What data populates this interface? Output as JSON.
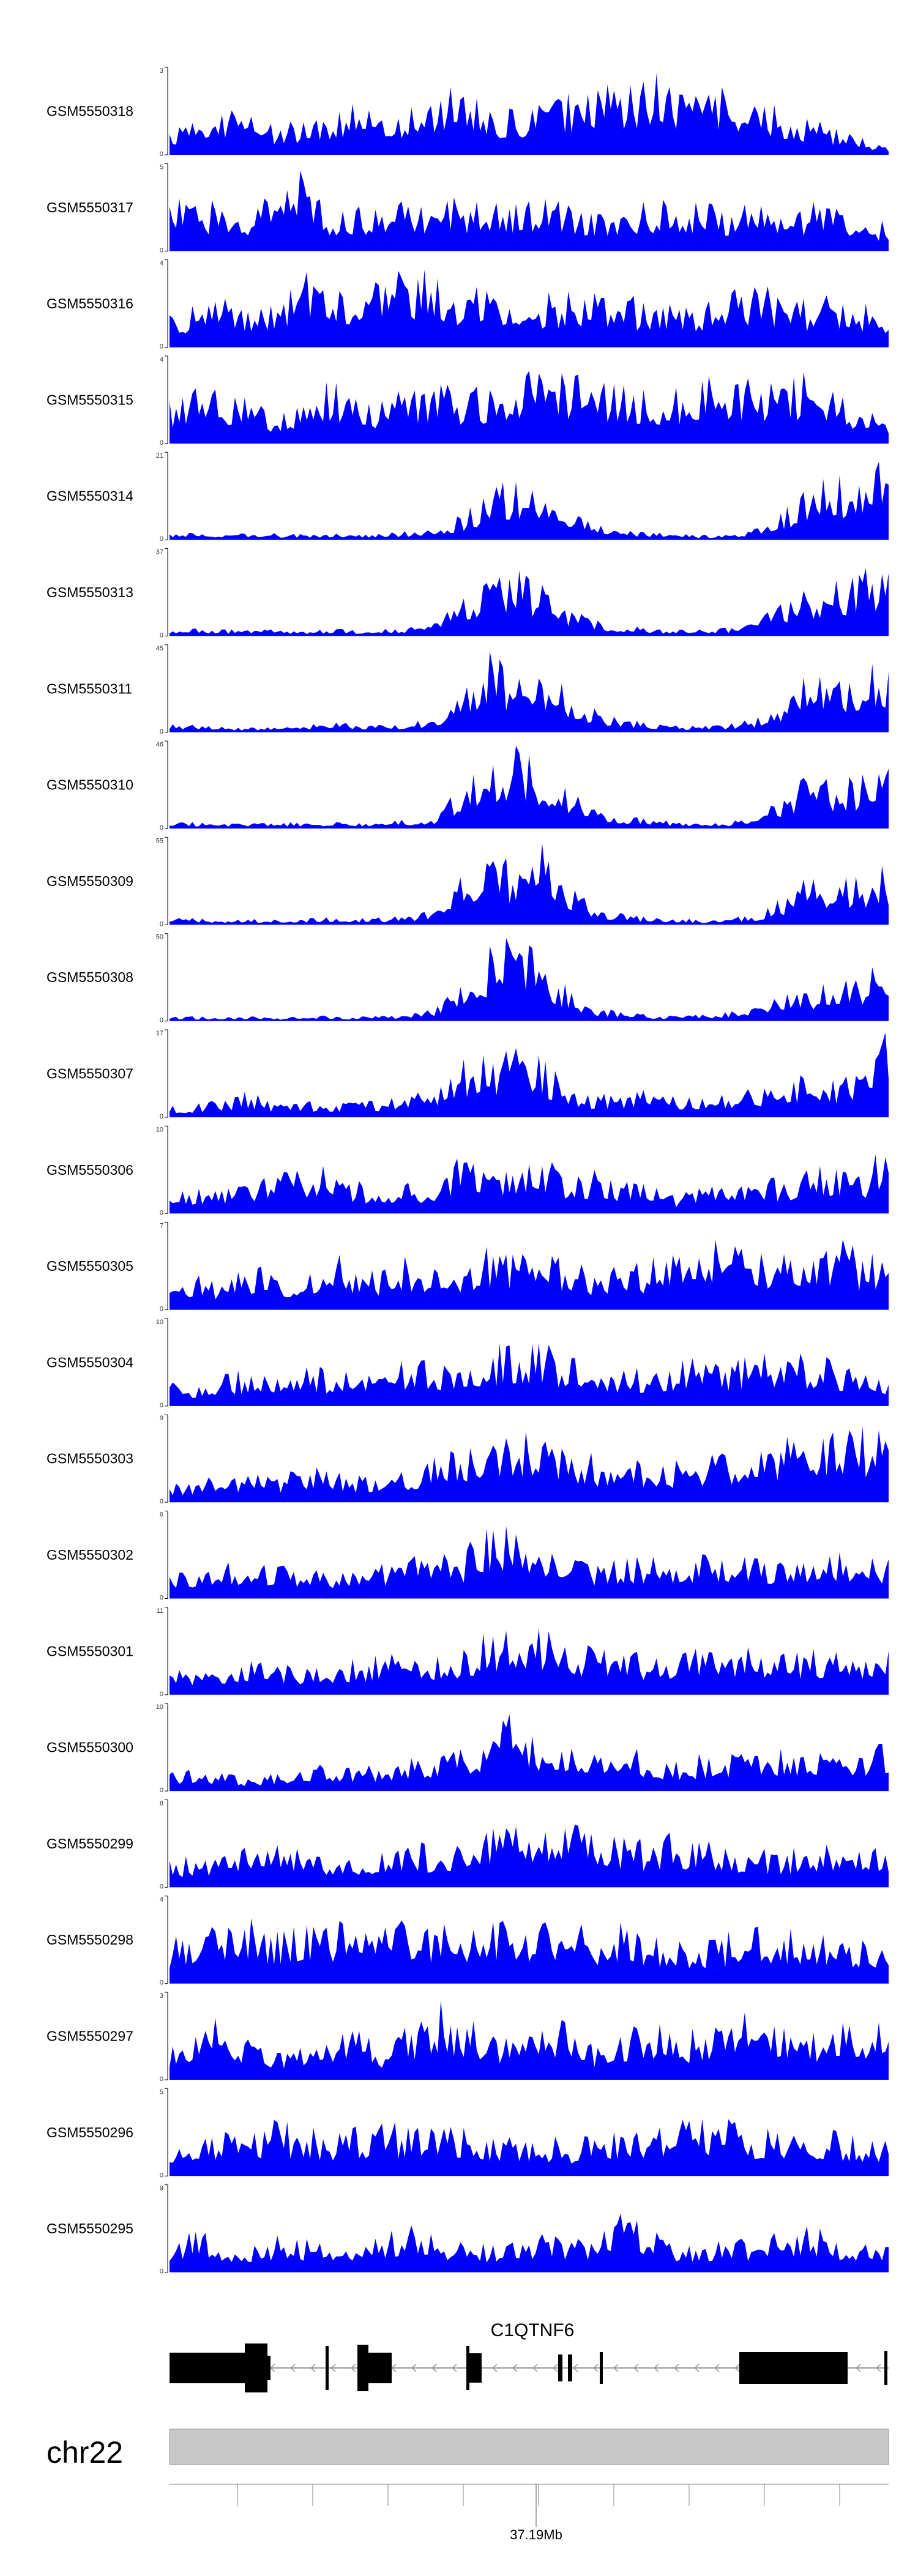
{
  "figure": {
    "chromosome": "chr22",
    "gene_label": "C1QTNF6",
    "genome_tick_label": "37.19Mb",
    "colors": {
      "coverage_fill": "#0000ff",
      "gene_model": "#000000",
      "ideogram_fill": "#c8c8c8",
      "ideogram_stroke": "#999999",
      "axis": "#000000",
      "intron_arrow": "#999999"
    }
  },
  "chart_data": {
    "type": "area",
    "title": "",
    "xlabel": "",
    "x_axis_labels": [
      "37.19Mb"
    ],
    "grid": false,
    "legend": "none",
    "tracks": [
      {
        "name": "GSM5550318",
        "ymax": 3,
        "yticks": [
          "3",
          "0"
        ],
        "profile": [
          0.3,
          0.4,
          0.5,
          0.6,
          0.3,
          0.4,
          0.5,
          0.6,
          0.4,
          0.5,
          0.7,
          0.8,
          0.5,
          0.5,
          0.6,
          0.7,
          0.7,
          0.8,
          0.9,
          0.8,
          0.8,
          0.7,
          0.6,
          0.5,
          0.4,
          0.3,
          0.2,
          0.1
        ]
      },
      {
        "name": "GSM5550317",
        "ymax": 5,
        "yticks": [
          "5",
          "0"
        ],
        "profile": [
          0.6,
          0.5,
          0.6,
          0.5,
          0.7,
          0.9,
          0.5,
          0.5,
          0.6,
          0.5,
          0.5,
          0.6,
          0.5,
          0.6,
          0.6,
          0.5,
          0.5,
          0.5,
          0.6,
          0.5,
          0.6,
          0.5,
          0.6,
          0.5,
          0.5,
          0.6,
          0.4,
          0.3
        ]
      },
      {
        "name": "GSM5550316",
        "ymax": 4,
        "yticks": [
          "4",
          "0"
        ],
        "profile": [
          0.4,
          0.5,
          0.6,
          0.5,
          0.6,
          0.8,
          0.9,
          0.7,
          0.8,
          0.9,
          0.8,
          0.6,
          0.7,
          0.7,
          0.6,
          0.6,
          0.7,
          0.6,
          0.5,
          0.6,
          0.5,
          0.6,
          0.7,
          0.6,
          0.5,
          0.6,
          0.5,
          0.4
        ]
      },
      {
        "name": "GSM5550315",
        "ymax": 4,
        "yticks": [
          "4",
          "0"
        ],
        "profile": [
          0.5,
          0.6,
          0.6,
          0.5,
          0.3,
          0.5,
          0.7,
          0.5,
          0.5,
          0.6,
          0.7,
          0.6,
          0.6,
          0.8,
          0.9,
          0.8,
          0.7,
          0.7,
          0.6,
          0.6,
          0.7,
          0.8,
          0.7,
          0.7,
          0.8,
          0.6,
          0.4,
          0.2
        ]
      },
      {
        "name": "GSM5550314",
        "ymax": 21,
        "yticks": [
          "21",
          "0"
        ],
        "profile": [
          0.06,
          0.08,
          0.07,
          0.08,
          0.07,
          0.06,
          0.07,
          0.06,
          0.07,
          0.1,
          0.12,
          0.28,
          0.52,
          0.7,
          0.62,
          0.42,
          0.22,
          0.12,
          0.08,
          0.07,
          0.06,
          0.07,
          0.12,
          0.32,
          0.58,
          0.7,
          0.72,
          0.95
        ]
      },
      {
        "name": "GSM5550313",
        "ymax": 37,
        "yticks": [
          "37",
          "0"
        ],
        "profile": [
          0.08,
          0.08,
          0.07,
          0.08,
          0.07,
          0.06,
          0.08,
          0.07,
          0.08,
          0.1,
          0.15,
          0.45,
          0.72,
          0.75,
          0.55,
          0.3,
          0.18,
          0.12,
          0.08,
          0.07,
          0.08,
          0.1,
          0.2,
          0.35,
          0.55,
          0.6,
          0.7,
          0.95
        ]
      },
      {
        "name": "GSM5550311",
        "ymax": 45,
        "yticks": [
          "45",
          "0"
        ],
        "profile": [
          0.1,
          0.08,
          0.07,
          0.06,
          0.05,
          0.08,
          0.12,
          0.1,
          0.08,
          0.1,
          0.2,
          0.45,
          0.9,
          0.6,
          0.75,
          0.45,
          0.25,
          0.15,
          0.1,
          0.08,
          0.07,
          0.09,
          0.15,
          0.35,
          0.7,
          0.6,
          0.7,
          0.8
        ]
      },
      {
        "name": "GSM5550310",
        "ymax": 46,
        "yticks": [
          "46",
          "0"
        ],
        "profile": [
          0.08,
          0.07,
          0.06,
          0.07,
          0.06,
          0.07,
          0.08,
          0.07,
          0.08,
          0.1,
          0.15,
          0.5,
          0.85,
          0.95,
          0.7,
          0.45,
          0.25,
          0.15,
          0.1,
          0.08,
          0.07,
          0.08,
          0.12,
          0.35,
          0.65,
          0.55,
          0.6,
          0.7
        ]
      },
      {
        "name": "GSM5550309",
        "ymax": 55,
        "yticks": [
          "55",
          "0"
        ],
        "profile": [
          0.08,
          0.07,
          0.06,
          0.07,
          0.06,
          0.07,
          0.08,
          0.07,
          0.08,
          0.1,
          0.2,
          0.55,
          0.9,
          0.6,
          0.95,
          0.45,
          0.2,
          0.12,
          0.08,
          0.07,
          0.06,
          0.08,
          0.12,
          0.3,
          0.6,
          0.5,
          0.55,
          0.65
        ]
      },
      {
        "name": "GSM5550308",
        "ymax": 50,
        "yticks": [
          "50",
          "0"
        ],
        "profile": [
          0.05,
          0.05,
          0.04,
          0.05,
          0.04,
          0.05,
          0.06,
          0.05,
          0.06,
          0.08,
          0.15,
          0.5,
          0.8,
          0.95,
          0.7,
          0.35,
          0.15,
          0.1,
          0.07,
          0.06,
          0.07,
          0.12,
          0.2,
          0.28,
          0.35,
          0.45,
          0.5,
          0.75
        ]
      },
      {
        "name": "GSM5550307",
        "ymax": 17,
        "yticks": [
          "17",
          "0"
        ],
        "profile": [
          0.12,
          0.15,
          0.2,
          0.28,
          0.15,
          0.2,
          0.15,
          0.18,
          0.2,
          0.25,
          0.3,
          0.65,
          0.7,
          0.75,
          0.65,
          0.35,
          0.25,
          0.25,
          0.3,
          0.25,
          0.25,
          0.3,
          0.35,
          0.4,
          0.5,
          0.45,
          0.55,
          1.0
        ]
      },
      {
        "name": "GSM5550306",
        "ymax": 10,
        "yticks": [
          "10",
          "0"
        ],
        "profile": [
          0.25,
          0.3,
          0.25,
          0.35,
          0.5,
          0.45,
          0.55,
          0.35,
          0.3,
          0.35,
          0.3,
          0.7,
          0.5,
          0.45,
          0.6,
          0.45,
          0.5,
          0.35,
          0.3,
          0.2,
          0.3,
          0.45,
          0.35,
          0.4,
          0.5,
          0.55,
          0.45,
          0.9
        ]
      },
      {
        "name": "GSM5550305",
        "ymax": 7,
        "yticks": [
          "7",
          "0"
        ],
        "profile": [
          0.3,
          0.45,
          0.3,
          0.5,
          0.4,
          0.35,
          0.7,
          0.4,
          0.45,
          0.6,
          0.5,
          0.55,
          0.7,
          0.6,
          0.65,
          0.55,
          0.45,
          0.5,
          0.55,
          0.6,
          0.7,
          0.8,
          0.65,
          0.6,
          0.55,
          0.85,
          0.6,
          0.7
        ]
      },
      {
        "name": "GSM5550304",
        "ymax": 10,
        "yticks": [
          "10",
          "0"
        ],
        "profile": [
          0.3,
          0.25,
          0.35,
          0.4,
          0.35,
          0.5,
          0.4,
          0.35,
          0.45,
          0.5,
          0.55,
          0.4,
          0.6,
          0.75,
          0.7,
          0.55,
          0.45,
          0.4,
          0.45,
          0.5,
          0.55,
          0.5,
          0.55,
          0.6,
          0.55,
          0.5,
          0.45,
          0.35
        ]
      },
      {
        "name": "GSM5550303",
        "ymax": 9,
        "yticks": [
          "9",
          "0"
        ],
        "profile": [
          0.2,
          0.25,
          0.3,
          0.35,
          0.3,
          0.35,
          0.4,
          0.3,
          0.35,
          0.4,
          0.5,
          0.6,
          0.7,
          0.8,
          0.75,
          0.65,
          0.5,
          0.45,
          0.5,
          0.45,
          0.5,
          0.55,
          0.6,
          0.7,
          0.7,
          0.75,
          0.8,
          0.75
        ]
      },
      {
        "name": "GSM5550302",
        "ymax": 6,
        "yticks": [
          "6",
          "0"
        ],
        "profile": [
          0.3,
          0.35,
          0.4,
          0.45,
          0.4,
          0.35,
          0.3,
          0.35,
          0.4,
          0.5,
          0.55,
          0.5,
          0.85,
          0.9,
          0.7,
          0.55,
          0.4,
          0.45,
          0.5,
          0.45,
          0.5,
          0.55,
          0.5,
          0.45,
          0.5,
          0.55,
          0.45,
          0.5
        ]
      },
      {
        "name": "GSM5550301",
        "ymax": 11,
        "yticks": [
          "11",
          "0"
        ],
        "profile": [
          0.25,
          0.3,
          0.35,
          0.4,
          0.35,
          0.3,
          0.35,
          0.4,
          0.45,
          0.5,
          0.45,
          0.55,
          0.7,
          0.85,
          0.8,
          0.6,
          0.5,
          0.55,
          0.45,
          0.5,
          0.55,
          0.6,
          0.5,
          0.45,
          0.55,
          0.5,
          0.45,
          0.5
        ]
      },
      {
        "name": "GSM5550300",
        "ymax": 10,
        "yticks": [
          "10",
          "0"
        ],
        "profile": [
          0.2,
          0.25,
          0.2,
          0.15,
          0.2,
          0.25,
          0.3,
          0.25,
          0.3,
          0.35,
          0.4,
          0.45,
          0.55,
          0.95,
          0.5,
          0.45,
          0.55,
          0.6,
          0.4,
          0.35,
          0.4,
          0.45,
          0.4,
          0.45,
          0.5,
          0.4,
          0.45,
          0.6
        ]
      },
      {
        "name": "GSM5550299",
        "ymax": 8,
        "yticks": [
          "8",
          "0"
        ],
        "profile": [
          0.3,
          0.35,
          0.4,
          0.45,
          0.5,
          0.45,
          0.4,
          0.35,
          0.4,
          0.5,
          0.45,
          0.5,
          0.7,
          0.8,
          0.75,
          0.7,
          0.6,
          0.55,
          0.5,
          0.6,
          0.55,
          0.5,
          0.45,
          0.4,
          0.45,
          0.5,
          0.4,
          0.45
        ]
      },
      {
        "name": "GSM5550298",
        "ymax": 4,
        "yticks": [
          "4",
          "0"
        ],
        "profile": [
          0.5,
          0.6,
          0.65,
          0.7,
          0.6,
          0.65,
          0.7,
          0.6,
          0.65,
          0.7,
          0.65,
          0.7,
          0.75,
          0.7,
          0.65,
          0.7,
          0.6,
          0.65,
          0.55,
          0.5,
          0.45,
          0.55,
          0.6,
          0.65,
          0.6,
          0.55,
          0.5,
          0.45
        ]
      },
      {
        "name": "GSM5550297",
        "ymax": 3,
        "yticks": [
          "3",
          "0"
        ],
        "profile": [
          0.4,
          0.6,
          0.7,
          0.5,
          0.3,
          0.4,
          0.55,
          0.7,
          0.3,
          0.6,
          0.9,
          0.7,
          0.5,
          0.6,
          0.8,
          0.6,
          0.4,
          0.5,
          0.7,
          0.5,
          0.6,
          0.8,
          0.7,
          0.6,
          0.5,
          0.7,
          0.6,
          0.8
        ]
      },
      {
        "name": "GSM5550296",
        "ymax": 5,
        "yticks": [
          "5",
          "0"
        ],
        "profile": [
          0.4,
          0.45,
          0.5,
          0.55,
          0.6,
          0.55,
          0.5,
          0.55,
          0.6,
          0.55,
          0.5,
          0.55,
          0.45,
          0.4,
          0.45,
          0.4,
          0.45,
          0.5,
          0.55,
          0.6,
          0.65,
          0.6,
          0.55,
          0.5,
          0.55,
          0.5,
          0.45,
          0.4
        ]
      },
      {
        "name": "GSM5550295",
        "ymax": 9,
        "yticks": [
          "9",
          "0"
        ],
        "profile": [
          0.3,
          0.55,
          0.35,
          0.3,
          0.4,
          0.35,
          0.4,
          0.35,
          0.45,
          0.55,
          0.4,
          0.35,
          0.3,
          0.4,
          0.45,
          0.4,
          0.35,
          0.85,
          0.45,
          0.35,
          0.3,
          0.4,
          0.35,
          0.45,
          0.55,
          0.4,
          0.35,
          0.4
        ]
      }
    ]
  }
}
